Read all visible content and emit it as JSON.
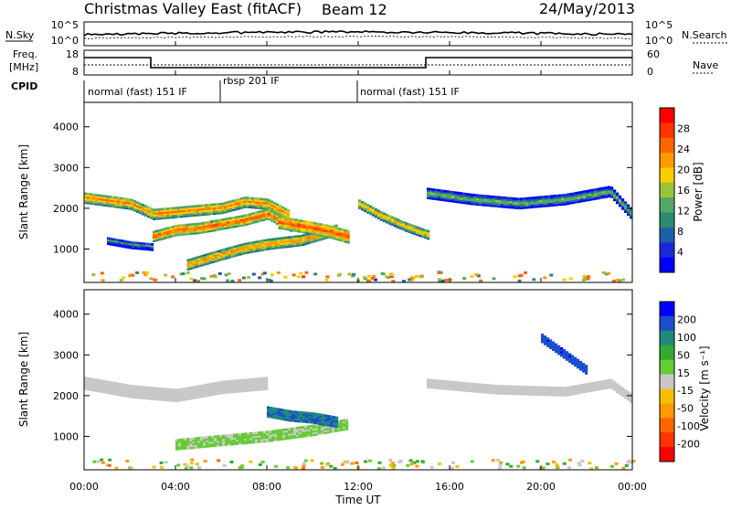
{
  "header": {
    "station": "Christmas Valley East (fitACF)",
    "beam": "Beam 12",
    "date": "24/May/2013"
  },
  "nsky_panel": {
    "left_label": "N.Sky",
    "left_ticks": [
      "10^5",
      "10^0"
    ],
    "right_ticks": [
      "10^5",
      "10^0"
    ],
    "right_label": "N.Search"
  },
  "freq_panel": {
    "left_label_1": "Freq.",
    "left_label_2": "[MHz]",
    "left_ticks": [
      "18",
      "8"
    ],
    "right_ticks": [
      "60",
      "0"
    ],
    "right_label": "Nave"
  },
  "cpid": {
    "label": "CPID",
    "segments": [
      {
        "text": "normal (fast) 151 IF",
        "start": 0,
        "end": 6
      },
      {
        "text": "rbsp 201 IF",
        "start": 6,
        "end": 12
      },
      {
        "text": "normal (fast) 151 IF",
        "start": 12,
        "end": 24
      }
    ]
  },
  "power_colorbar": {
    "label": "Power [dB]",
    "ticks": [
      "28",
      "24",
      "20",
      "16",
      "12",
      "8",
      "4"
    ],
    "colors": [
      "#ff0000",
      "#ff3300",
      "#ff6600",
      "#ff9900",
      "#ffcc00",
      "#9ac43a",
      "#52a76a",
      "#2d8a6e",
      "#1f5fa8",
      "#1a2ad8",
      "#0000ff"
    ]
  },
  "velocity_colorbar": {
    "label": "Velocity [m s⁻¹]",
    "ticks": [
      "200",
      "100",
      "50",
      "15",
      "-15",
      "-50",
      "-100",
      "-200"
    ],
    "colors": [
      "#0000ff",
      "#1a4fd0",
      "#1f8a7a",
      "#33aa33",
      "#66cc33",
      "#c8c8c8",
      "#f5c000",
      "#ff9a00",
      "#ff6600",
      "#ff3300",
      "#ff0000"
    ]
  },
  "chart_data": {
    "type": "heatmap",
    "xlabel": "Time UT",
    "x_ticks": [
      "00:00",
      "04:00",
      "08:00",
      "12:00",
      "16:00",
      "20:00",
      "00:00"
    ],
    "xlim": [
      0,
      24
    ],
    "ylabel": "Slant Range [km]",
    "y_ticks": [
      1000,
      2000,
      3000,
      4000
    ],
    "ylim": [
      180,
      4600
    ],
    "power_bands": [
      {
        "t": [
          0,
          2,
          3,
          4,
          6,
          7,
          8,
          9
        ],
        "range": [
          2250,
          2100,
          1850,
          1900,
          2000,
          2150,
          2100,
          1800
        ],
        "width": 260,
        "value": 24
      },
      {
        "t": [
          3,
          4,
          5,
          6,
          7,
          8,
          9
        ],
        "range": [
          1300,
          1450,
          1500,
          1600,
          1700,
          1850,
          1550
        ],
        "width": 240,
        "value": 26
      },
      {
        "t": [
          4.5,
          6,
          7,
          8,
          9.5,
          11
        ],
        "range": [
          600,
          850,
          1000,
          1100,
          1200,
          1450
        ],
        "width": 230,
        "value": 24
      },
      {
        "t": [
          8.5,
          9.5,
          10.5,
          11.5
        ],
        "range": [
          1650,
          1550,
          1450,
          1300
        ],
        "width": 300,
        "value": 27
      },
      {
        "t": [
          12,
          13,
          14,
          15
        ],
        "range": [
          2100,
          1800,
          1550,
          1350
        ],
        "width": 220,
        "value": 22
      },
      {
        "t": [
          15,
          17,
          19,
          21,
          23,
          24
        ],
        "range": [
          2350,
          2200,
          2100,
          2200,
          2400,
          1800
        ],
        "width": 230,
        "value": 16
      },
      {
        "t": [
          1,
          2,
          3
        ],
        "range": [
          1200,
          1100,
          1050
        ],
        "width": 180,
        "value": 12
      }
    ],
    "velocity_bands": [
      {
        "t": [
          0,
          2,
          4,
          6,
          8
        ],
        "range": [
          2300,
          2100,
          2000,
          2200,
          2300
        ],
        "width": 300,
        "value": 0
      },
      {
        "t": [
          4,
          6,
          8,
          10,
          11.5
        ],
        "range": [
          800,
          900,
          1000,
          1150,
          1300
        ],
        "width": 260,
        "value": 30
      },
      {
        "t": [
          8,
          9,
          10,
          11
        ],
        "range": [
          1600,
          1500,
          1450,
          1350
        ],
        "width": 260,
        "value": 150
      },
      {
        "t": [
          15,
          18,
          21,
          23,
          24
        ],
        "range": [
          2300,
          2150,
          2100,
          2300,
          1900
        ],
        "width": 220,
        "value": 0
      },
      {
        "t": [
          20,
          21,
          22
        ],
        "range": [
          3400,
          3000,
          2600
        ],
        "width": 200,
        "value": 180
      }
    ]
  }
}
